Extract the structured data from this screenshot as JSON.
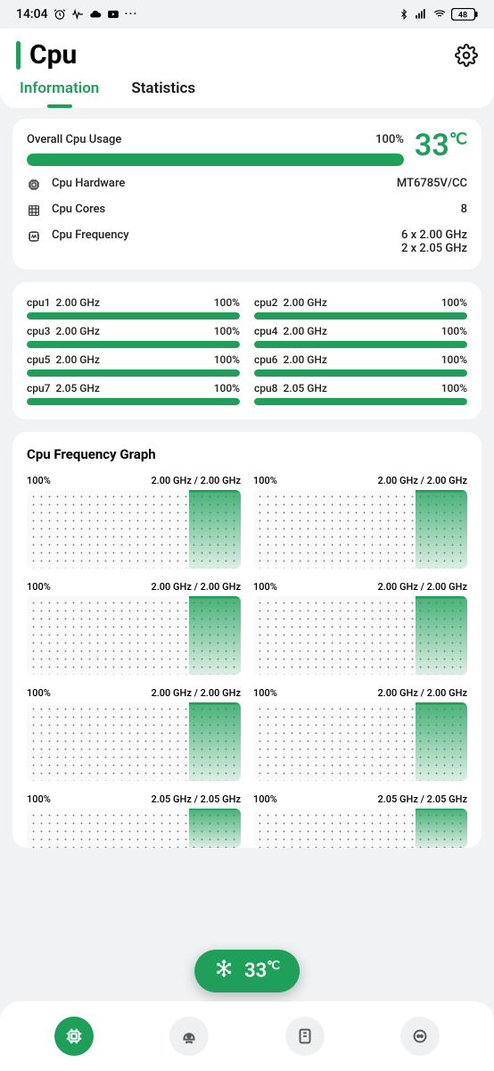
{
  "colors": {
    "accent": "#1fa05a",
    "text": "#1a1a1a",
    "muted": "#5a5a5a",
    "bg": "#f0f2f4",
    "card": "#ffffff",
    "barBg": "#e6e6e6",
    "chartDot": "#888888",
    "navInactive": "#5a5a5a"
  },
  "statusBar": {
    "time": "14:04",
    "batteryPct": "48"
  },
  "header": {
    "title": "Cpu",
    "tabs": [
      {
        "label": "Information",
        "active": true
      },
      {
        "label": "Statistics",
        "active": false
      }
    ]
  },
  "overall": {
    "label": "Overall Cpu Usage",
    "pctText": "100%",
    "pct": 100,
    "tempValue": "33",
    "tempUnit": "℃",
    "specs": [
      {
        "icon": "chip",
        "label": "Cpu Hardware",
        "value": "MT6785V/CC"
      },
      {
        "icon": "grid",
        "label": "Cpu Cores",
        "value": "8"
      },
      {
        "icon": "freq",
        "label": "Cpu Frequency",
        "value": "6 x 2.00 GHz\n2 x 2.05 GHz"
      }
    ]
  },
  "cpus": [
    {
      "name": "cpu1",
      "freq": "2.00 GHz",
      "pctText": "100%",
      "pct": 100
    },
    {
      "name": "cpu2",
      "freq": "2.00 GHz",
      "pctText": "100%",
      "pct": 100
    },
    {
      "name": "cpu3",
      "freq": "2.00 GHz",
      "pctText": "100%",
      "pct": 100
    },
    {
      "name": "cpu4",
      "freq": "2.00 GHz",
      "pctText": "100%",
      "pct": 100
    },
    {
      "name": "cpu5",
      "freq": "2.00 GHz",
      "pctText": "100%",
      "pct": 100
    },
    {
      "name": "cpu6",
      "freq": "2.00 GHz",
      "pctText": "100%",
      "pct": 100
    },
    {
      "name": "cpu7",
      "freq": "2.05 GHz",
      "pctText": "100%",
      "pct": 100
    },
    {
      "name": "cpu8",
      "freq": "2.05 GHz",
      "pctText": "100%",
      "pct": 100
    }
  ],
  "freqGraph": {
    "title": "Cpu Frequency Graph",
    "items": [
      {
        "pct": "100%",
        "range": "2.00 GHz / 2.00 GHz",
        "fillPct": 24
      },
      {
        "pct": "100%",
        "range": "2.00 GHz / 2.00 GHz",
        "fillPct": 24
      },
      {
        "pct": "100%",
        "range": "2.00 GHz / 2.00 GHz",
        "fillPct": 24
      },
      {
        "pct": "100%",
        "range": "2.00 GHz / 2.00 GHz",
        "fillPct": 24
      },
      {
        "pct": "100%",
        "range": "2.00 GHz / 2.00 GHz",
        "fillPct": 24
      },
      {
        "pct": "100%",
        "range": "2.00 GHz / 2.00 GHz",
        "fillPct": 24
      },
      {
        "pct": "100%",
        "range": "2.05 GHz / 2.05 GHz",
        "fillPct": 24
      },
      {
        "pct": "100%",
        "range": "2.05 GHz / 2.05 GHz",
        "fillPct": 24
      }
    ]
  },
  "floatPill": {
    "temp": "33",
    "unit": "℃"
  },
  "nav": {
    "items": [
      {
        "name": "cpu-tab",
        "active": true
      },
      {
        "name": "gpu-tab",
        "active": false
      },
      {
        "name": "ram-tab",
        "active": false
      },
      {
        "name": "info-tab",
        "active": false
      }
    ]
  }
}
